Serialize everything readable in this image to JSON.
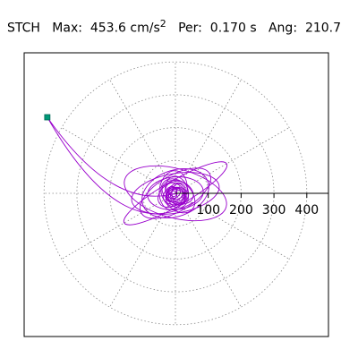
{
  "header": {
    "station": "STCH",
    "max_label": "Max:",
    "max_value": "453.6 cm/s",
    "max_exp": "2",
    "per_label": "Per:",
    "per_value": "0.170 s",
    "ang_label": "Ang:",
    "ang_value": "210.7"
  },
  "chart_data": {
    "type": "polar-orbit",
    "title": "",
    "xlabel": "",
    "ylabel": "",
    "radial_ticks": [
      "100",
      "200",
      "300",
      "400"
    ],
    "radial_tick_values": [
      100,
      200,
      300,
      400
    ],
    "rlim": [
      0,
      453.6
    ],
    "ring_values": [
      100,
      200,
      300,
      400
    ],
    "grid": true,
    "grid_style": "dotted",
    "angular_spokes_deg": [
      0,
      30,
      60,
      90,
      120,
      150,
      180,
      210,
      240,
      270,
      300,
      330
    ],
    "peak": {
      "angle_deg": 210.7,
      "radius": 453.6,
      "marker_color": "#009977"
    },
    "trace_color": "#9900cc",
    "orbit_components": [
      {
        "a": 180,
        "b": 38,
        "rot_deg": 30
      },
      {
        "a": 160,
        "b": 75,
        "rot_deg": -15
      },
      {
        "a": 105,
        "b": 70,
        "rot_deg": 20
      },
      {
        "a": 135,
        "b": 60,
        "rot_deg": 10
      },
      {
        "a": 85,
        "b": 50,
        "rot_deg": 5
      },
      {
        "a": 120,
        "b": 55,
        "rot_deg": 30
      },
      {
        "a": 25,
        "b": 18,
        "rot_deg": 0
      },
      {
        "a": 18,
        "b": 12,
        "rot_deg": 45
      }
    ]
  }
}
